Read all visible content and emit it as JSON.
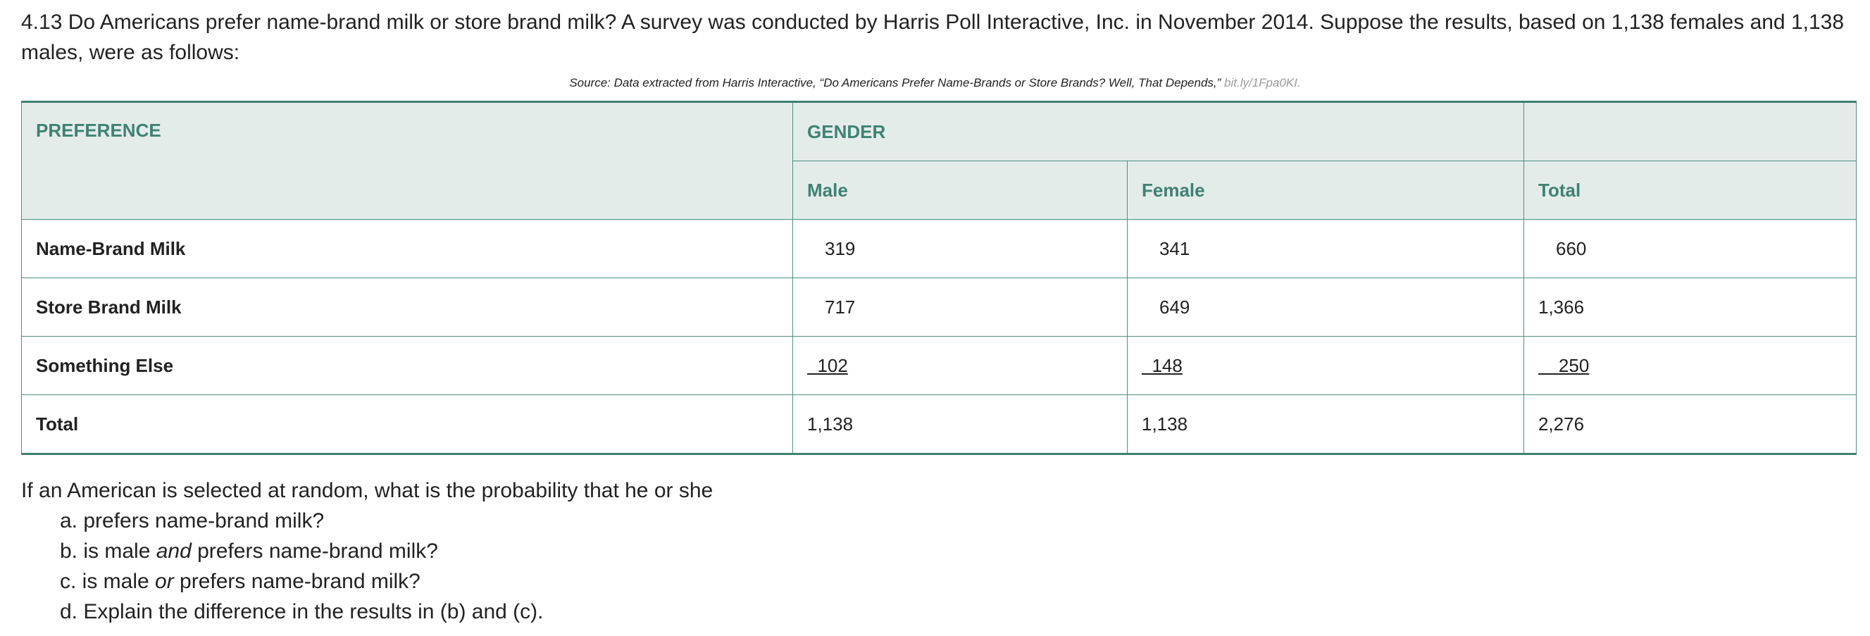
{
  "problem": "4.13 Do Americans prefer name-brand milk or store brand milk? A survey was conducted by Harris Poll Interactive, Inc. in November 2014. Suppose the results, based on 1,138 females and 1,138 males, were as follows:",
  "source": {
    "text": "Source: Data extracted from Harris Interactive, “Do Americans Prefer Name-Brands or Store Brands? Well, That Depends,”",
    "link": "bit.ly/1Fpa0KI."
  },
  "table": {
    "header_preference": "PREFERENCE",
    "header_gender": "GENDER",
    "header_blank": "",
    "sub_male": "Male",
    "sub_female": "Female",
    "sub_total": "Total",
    "rows": [
      {
        "label": "Name-Brand Milk",
        "male": "319",
        "female": "341",
        "total": "660"
      },
      {
        "label": "Store Brand Milk",
        "male": "717",
        "female": "649",
        "total": "1,366"
      },
      {
        "label": "Something Else",
        "male": "  102",
        "female": "  148",
        "total": "    250"
      },
      {
        "label": "Total",
        "male": "1,138",
        "female": "1,138",
        "total": "2,276"
      }
    ]
  },
  "question": "If an American is selected at random, what is the probability that he or she",
  "parts": {
    "a": "a. prefers name-brand milk?",
    "b_pre": "b. is male ",
    "b_em": "and",
    "b_post": " prefers name-brand milk?",
    "c_pre": "c. is male ",
    "c_em": "or",
    "c_post": " prefers name-brand milk?",
    "d": "d. Explain the difference in the results in (b) and (c)."
  }
}
